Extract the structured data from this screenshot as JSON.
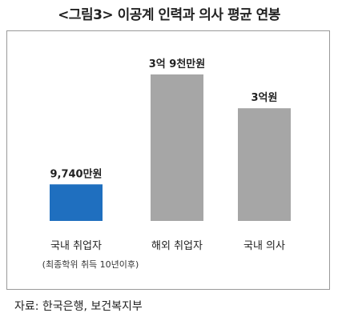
{
  "title": "<그림3> 이공계 인력과 의사 평균 연봉",
  "source": "자료: 한국은행, 보건복지부",
  "chart_data": {
    "type": "bar",
    "categories": [
      "국내 취업자",
      "해외 취업자",
      "국내 의사"
    ],
    "values": [
      9740,
      39000,
      30000
    ],
    "value_labels": [
      "9,740만원",
      "3억 9천만원",
      "3억원"
    ],
    "colors": [
      "#1f6fbf",
      "#a6a6a6",
      "#a6a6a6"
    ],
    "category_note": "(최종학위 취득 10년이후)",
    "ylim": [
      0,
      39000
    ],
    "grid": false
  }
}
